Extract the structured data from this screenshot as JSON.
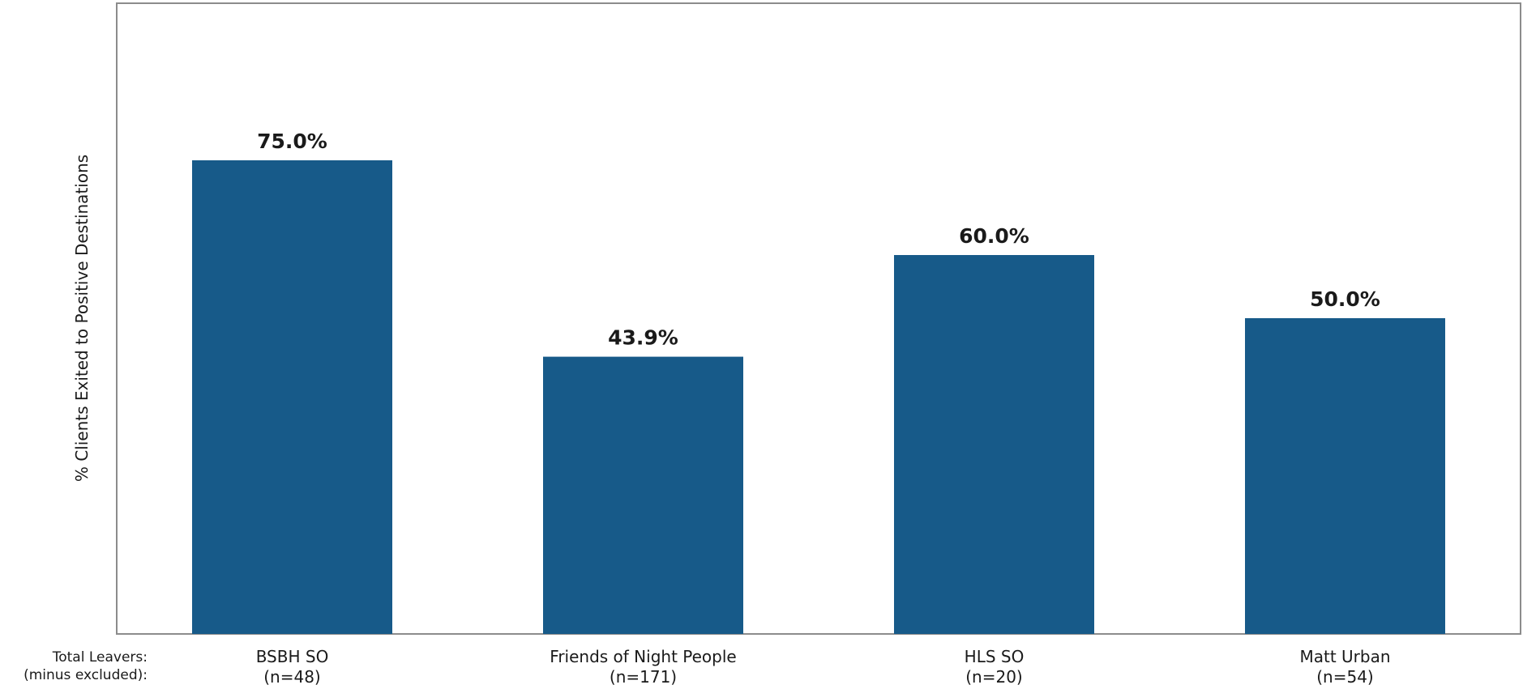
{
  "chart_data": {
    "type": "bar",
    "categories": [
      "BSBH SO",
      "Friends of Night People",
      "HLS SO",
      "Matt Urban"
    ],
    "counts": [
      "(n=48)",
      "(n=171)",
      "(n=20)",
      "(n=54)"
    ],
    "values": [
      75.0,
      43.9,
      60.0,
      50.0
    ],
    "data_labels": [
      "75.0%",
      "43.9%",
      "60.0%",
      "50.0%"
    ],
    "ylabel": "% Clients Exited to Positive Destinations",
    "row_label_line1": "Total Leavers:",
    "row_label_line2": "(minus excluded):",
    "ylim": [
      0,
      100
    ],
    "grid": false,
    "bar_color": "#175a89",
    "frame_color": "#8c8c8c"
  }
}
